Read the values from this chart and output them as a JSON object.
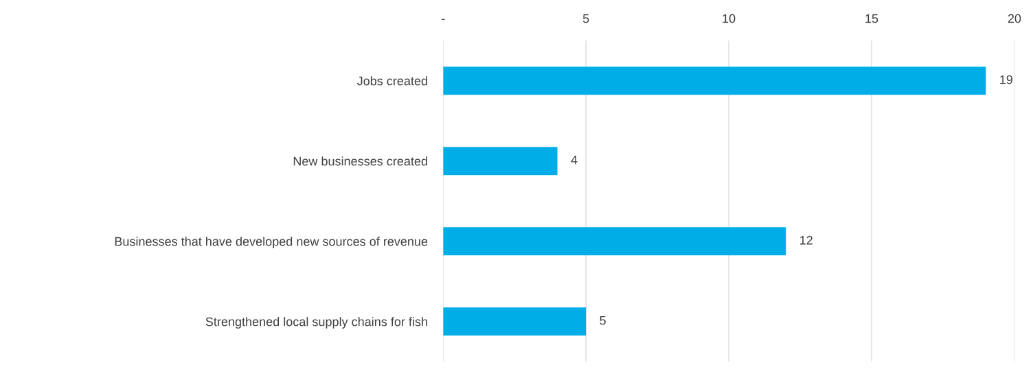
{
  "chart_data": {
    "type": "bar",
    "orientation": "horizontal",
    "categories": [
      "Jobs created",
      "New businesses created",
      "Businesses that have developed new sources of revenue",
      "Strengthened local supply chains for fish"
    ],
    "values": [
      19,
      4,
      12,
      5
    ],
    "color": "#00ade6",
    "xlim": [
      0,
      20
    ],
    "xticks": [
      {
        "value": 0,
        "label": "-"
      },
      5,
      10,
      15,
      20
    ],
    "grid": "x",
    "data_labels": true
  }
}
